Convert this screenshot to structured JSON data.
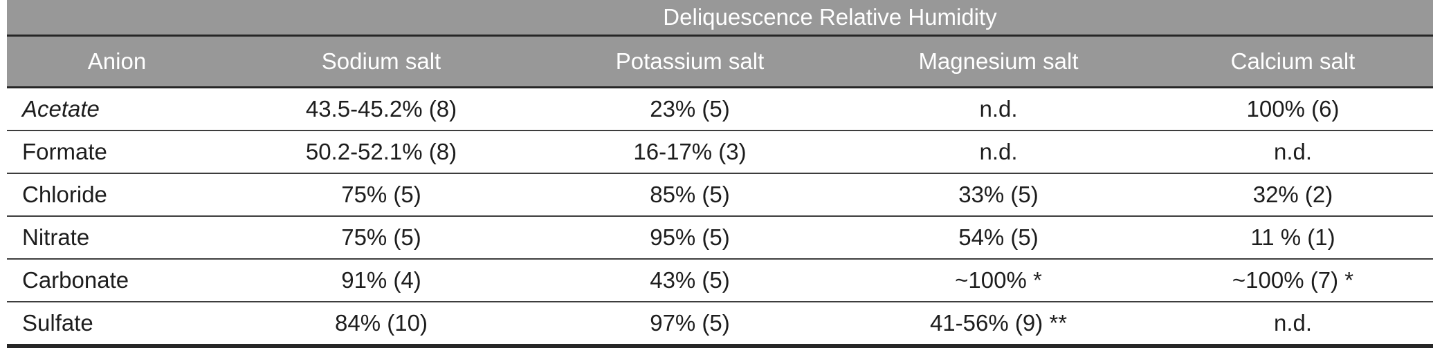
{
  "table": {
    "title": "Deliquescence Relative Humidity",
    "columns": {
      "anion": "Anion",
      "sodium": "Sodium salt",
      "potassium": "Potassium salt",
      "magnesium": "Magnesium salt",
      "calcium": "Calcium salt"
    },
    "rows": [
      {
        "anion": "Acetate",
        "sodium": "43.5-45.2% (8)",
        "potassium": "23% (5)",
        "magnesium": "n.d.",
        "calcium": "100% (6)"
      },
      {
        "anion": "Formate",
        "sodium": "50.2-52.1% (8)",
        "potassium": "16-17% (3)",
        "magnesium": "n.d.",
        "calcium": "n.d."
      },
      {
        "anion": "Chloride",
        "sodium": "75% (5)",
        "potassium": "85% (5)",
        "magnesium": "33% (5)",
        "calcium": "32% (2)"
      },
      {
        "anion": "Nitrate",
        "sodium": "75% (5)",
        "potassium": "95% (5)",
        "magnesium": "54% (5)",
        "calcium": "11 % (1)"
      },
      {
        "anion": "Carbonate",
        "sodium": "91% (4)",
        "potassium": "43% (5)",
        "magnesium": "~100% *",
        "calcium": "~100% (7) *"
      },
      {
        "anion": "Sulfate",
        "sodium": "84% (10)",
        "potassium": "97% (5)",
        "magnesium": "41-56% (9) **",
        "calcium": "n.d."
      }
    ],
    "colors": {
      "header_background": "#989898",
      "header_text": "#ffffff",
      "body_text": "#1d1d1d",
      "grid_line_dark": "#262626",
      "row_divider": "#3d3d3d"
    }
  }
}
